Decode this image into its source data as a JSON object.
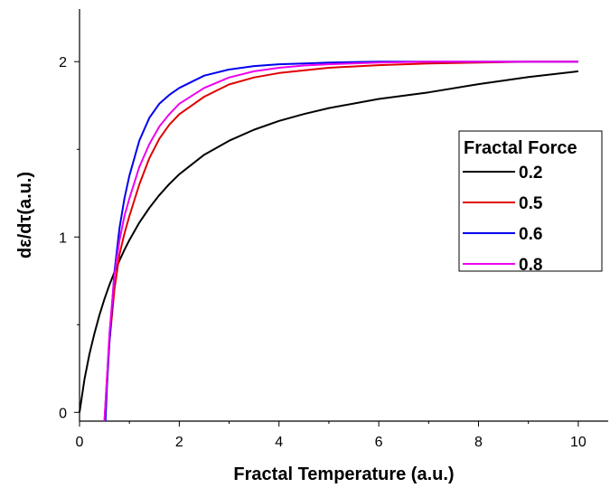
{
  "chart_data": {
    "type": "line",
    "title": "",
    "xlabel": "Fractal Temperature (a.u.)",
    "ylabel": "dε/dτ(a.u.)",
    "xlim": [
      0,
      10.6
    ],
    "ylim": [
      -0.05,
      2.3
    ],
    "xticks": [
      0,
      2,
      4,
      6,
      8,
      10
    ],
    "yticks": [
      0,
      1,
      2
    ],
    "legend": {
      "title": "Fractal Force",
      "position": "right"
    },
    "series": [
      {
        "name": "0.2",
        "color": "#000000",
        "x": [
          0,
          0.1,
          0.2,
          0.3,
          0.4,
          0.5,
          0.6,
          0.7,
          0.8,
          0.9,
          1.0,
          1.2,
          1.4,
          1.6,
          1.8,
          2.0,
          2.5,
          3.0,
          3.5,
          4.0,
          4.5,
          5.0,
          6.0,
          7.0,
          8.0,
          9.0,
          10.0
        ],
        "y": [
          0.0,
          0.189,
          0.333,
          0.452,
          0.556,
          0.647,
          0.727,
          0.799,
          0.866,
          0.927,
          0.983,
          1.082,
          1.166,
          1.239,
          1.302,
          1.358,
          1.469,
          1.549,
          1.612,
          1.662,
          1.701,
          1.735,
          1.787,
          1.825,
          1.872,
          1.912,
          1.945
        ]
      },
      {
        "name": "0.5",
        "color": "#e00000",
        "x": [
          0.5,
          0.55,
          0.6,
          0.7,
          0.8,
          0.9,
          1.0,
          1.2,
          1.4,
          1.6,
          1.8,
          2.0,
          2.5,
          3.0,
          3.5,
          4.0,
          4.5,
          5.0,
          6.0,
          7.0,
          8.0,
          9.0,
          10.0
        ],
        "y": [
          -0.05,
          0.2,
          0.4,
          0.7,
          0.9,
          1.02,
          1.12,
          1.3,
          1.45,
          1.56,
          1.64,
          1.7,
          1.8,
          1.87,
          1.91,
          1.935,
          1.95,
          1.965,
          1.98,
          1.99,
          1.995,
          2.0,
          2.0
        ]
      },
      {
        "name": "0.6",
        "color": "#0000ee",
        "x": [
          0.52,
          0.55,
          0.6,
          0.7,
          0.8,
          0.9,
          1.0,
          1.2,
          1.4,
          1.6,
          1.8,
          2.0,
          2.5,
          3.0,
          3.5,
          4.0,
          4.5,
          5.0,
          6.0,
          7.0,
          8.0,
          9.0,
          10.0
        ],
        "y": [
          -0.05,
          0.15,
          0.4,
          0.8,
          1.05,
          1.22,
          1.35,
          1.55,
          1.68,
          1.76,
          1.81,
          1.85,
          1.92,
          1.955,
          1.975,
          1.985,
          1.99,
          1.995,
          2.0,
          2.0,
          2.0,
          2.0,
          2.0
        ]
      },
      {
        "name": "0.8",
        "color": "#ee00ee",
        "x": [
          0.5,
          0.55,
          0.6,
          0.7,
          0.8,
          0.9,
          1.0,
          1.2,
          1.4,
          1.6,
          1.8,
          2.0,
          2.5,
          3.0,
          3.5,
          4.0,
          4.5,
          5.0,
          6.0,
          7.0,
          8.0,
          9.0,
          10.0
        ],
        "y": [
          -0.05,
          0.2,
          0.45,
          0.78,
          0.98,
          1.12,
          1.22,
          1.4,
          1.53,
          1.63,
          1.7,
          1.76,
          1.85,
          1.91,
          1.945,
          1.965,
          1.978,
          1.985,
          1.995,
          2.0,
          2.0,
          2.0,
          2.0
        ]
      }
    ]
  }
}
